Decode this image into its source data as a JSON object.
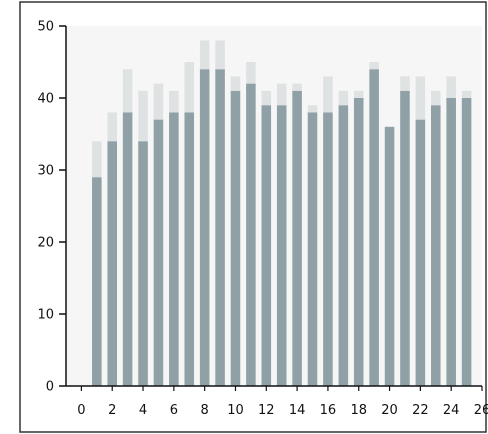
{
  "colors": {
    "background": "#ffffff",
    "plot_background": "#f6f6f6",
    "panel_border": "#333333",
    "axis": "#111111",
    "base_series": "#8fa0a6",
    "top_series": "#dfe2e3"
  },
  "chart_data": {
    "type": "bar",
    "stacked": true,
    "x": [
      1,
      2,
      3,
      4,
      5,
      6,
      7,
      8,
      9,
      10,
      11,
      12,
      13,
      14,
      15,
      16,
      17,
      18,
      19,
      20,
      21,
      22,
      23,
      24,
      25
    ],
    "series": [
      {
        "values": [
          29,
          34,
          38,
          34,
          37,
          38,
          38,
          44,
          44,
          41,
          42,
          39,
          39,
          41,
          38,
          38,
          39,
          40,
          44,
          36,
          41,
          37,
          39,
          40,
          40
        ]
      },
      {
        "values": [
          5,
          4,
          6,
          7,
          5,
          3,
          7,
          4,
          4,
          2,
          3,
          2,
          3,
          1,
          1,
          5,
          2,
          1,
          1,
          0,
          2,
          6,
          2,
          3,
          1
        ]
      }
    ],
    "xlim": [
      -1,
      26
    ],
    "ylim": [
      0,
      50
    ],
    "xticks": [
      "0",
      "2",
      "4",
      "6",
      "8",
      "10",
      "12",
      "14",
      "16",
      "18",
      "20",
      "22",
      "24",
      "26"
    ],
    "yticks": [
      "0",
      "10",
      "20",
      "30",
      "40",
      "50"
    ],
    "grid": false,
    "legend": "none"
  }
}
